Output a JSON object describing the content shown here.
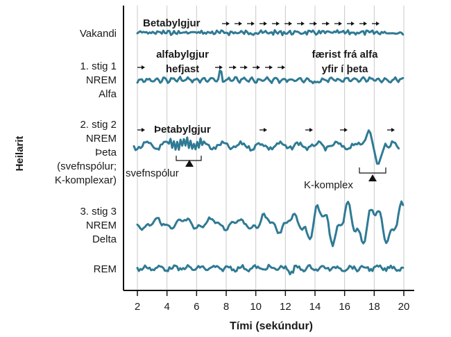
{
  "y_axis_label": "Heilarit",
  "x_axis": {
    "label": "Tími (sekúndur)",
    "ticks": [
      "2",
      "4",
      "6",
      "8",
      "10",
      "12",
      "14",
      "16",
      "18",
      "20"
    ],
    "range": [
      2,
      20
    ]
  },
  "rows": [
    {
      "id": "awake",
      "lines": [
        "Vakandi"
      ],
      "wave": "beta",
      "annotation_lines": [
        "Betabylgjur"
      ]
    },
    {
      "id": "stage1",
      "lines": [
        "1. stig 1",
        "NREM",
        "Alfa"
      ],
      "wave": "alpha",
      "annotation_lines": [
        "alfabylgjur",
        "hefjast"
      ],
      "annotation2_lines": [
        "færist frá alfa",
        "yfir í þeta"
      ]
    },
    {
      "id": "stage2",
      "lines": [
        "2. stig 2",
        "NREM",
        "Þeta",
        "(svefnspólur;",
        "K-komplexar)"
      ],
      "wave": "theta",
      "annotation_lines": [
        "Þetabylgjur"
      ],
      "callout_spindle": "svefnspólur",
      "callout_kcomplex": "K-komplex"
    },
    {
      "id": "stage3",
      "lines": [
        "3. stig 3",
        "NREM",
        "Delta"
      ],
      "wave": "delta"
    },
    {
      "id": "rem",
      "lines": [
        "REM"
      ],
      "wave": "rem"
    }
  ],
  "colors": {
    "trace": "#2f7a94",
    "axis": "#111111",
    "grid": "#c8c8c8",
    "text": "#1a1a1a"
  }
}
